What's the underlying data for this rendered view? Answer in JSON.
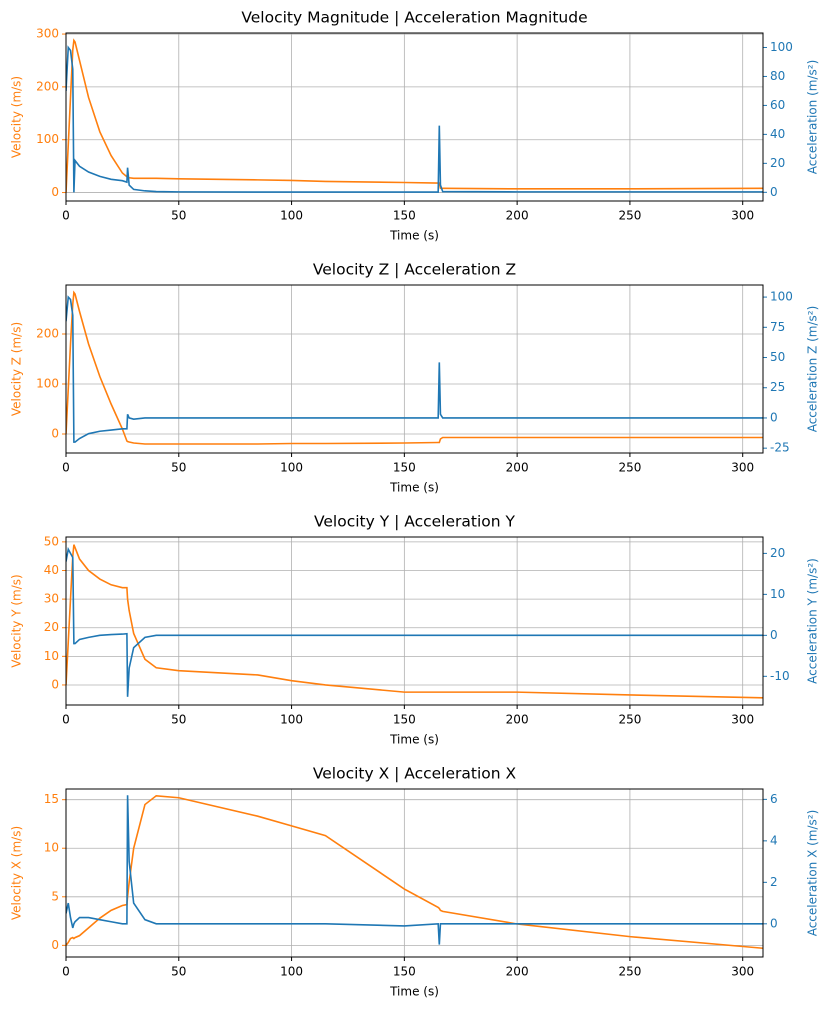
{
  "chart_data": [
    {
      "type": "line",
      "title": "Velocity Magnitude | Acceleration Magnitude",
      "xlabel": "Time (s)",
      "ylabel": "Velocity (m/s)",
      "y2label": "Acceleration (m/s²)",
      "x": [
        0,
        1,
        2,
        3,
        3.5,
        4,
        6,
        10,
        15,
        20,
        25,
        27,
        27.3,
        28,
        30,
        35,
        40,
        50,
        85,
        100,
        115,
        150,
        165,
        165.5,
        166,
        167,
        200,
        250,
        309
      ],
      "series": [
        {
          "name": "Velocity",
          "color": "#ff7f0e",
          "axis": "y",
          "values": [
            0,
            90,
            180,
            270,
            288,
            285,
            250,
            180,
            115,
            70,
            37,
            30,
            30,
            28,
            27,
            27,
            27,
            26,
            24,
            23,
            21,
            19,
            18,
            18,
            8,
            8,
            7,
            7,
            8
          ]
        },
        {
          "name": "Acceleration",
          "color": "#1f77b4",
          "axis": "y2",
          "values": [
            70,
            100,
            98,
            85,
            0,
            22,
            18,
            14,
            11,
            9,
            8,
            7,
            17,
            5,
            2,
            1,
            0.5,
            0.3,
            0.2,
            0.2,
            0.2,
            0.2,
            0.2,
            46,
            5,
            0.5,
            0.3,
            0.3,
            0.3
          ]
        }
      ],
      "xlim": [
        0,
        309
      ],
      "xticks": [
        0,
        50,
        100,
        150,
        200,
        250,
        300
      ],
      "ylim": [
        -16,
        302
      ],
      "yticks": [
        0,
        100,
        200,
        300
      ],
      "y2lim": [
        -6,
        110
      ],
      "y2ticks": [
        0,
        20,
        40,
        60,
        80,
        100
      ],
      "grid": true
    },
    {
      "type": "line",
      "title": "Velocity Z | Acceleration Z",
      "xlabel": "Time (s)",
      "ylabel": "Velocity Z (m/s)",
      "y2label": "Acceleration Z (m/s²)",
      "x": [
        0,
        1,
        2,
        3,
        3.5,
        4,
        6,
        10,
        15,
        20,
        25,
        27,
        27.3,
        28,
        30,
        35,
        40,
        50,
        85,
        100,
        115,
        150,
        165,
        165.5,
        166,
        167,
        200,
        250,
        309
      ],
      "series": [
        {
          "name": "Velocity Z",
          "color": "#ff7f0e",
          "axis": "y",
          "values": [
            0,
            90,
            180,
            260,
            283,
            280,
            245,
            180,
            115,
            60,
            10,
            -14,
            -15,
            -16,
            -18,
            -20,
            -20,
            -20,
            -20,
            -19,
            -19,
            -18,
            -17,
            -17,
            -10,
            -7,
            -7,
            -7,
            -7
          ]
        },
        {
          "name": "Acceleration Z",
          "color": "#1f77b4",
          "axis": "y2",
          "values": [
            80,
            100,
            98,
            85,
            -20,
            -20,
            -17,
            -13,
            -11,
            -10,
            -9,
            -9,
            3,
            0,
            -1,
            0,
            0,
            0,
            0,
            0,
            0,
            0,
            0,
            46,
            3,
            0,
            0,
            0,
            0
          ]
        }
      ],
      "xlim": [
        0,
        309
      ],
      "xticks": [
        0,
        50,
        100,
        150,
        200,
        250,
        300
      ],
      "ylim": [
        -38,
        298
      ],
      "yticks": [
        0,
        100,
        200
      ],
      "y2lim": [
        -29,
        110
      ],
      "y2ticks": [
        -25,
        0,
        25,
        50,
        75,
        100
      ],
      "grid": true
    },
    {
      "type": "line",
      "title": "Velocity Y | Acceleration Y",
      "xlabel": "Time (s)",
      "ylabel": "Velocity Y (m/s)",
      "y2label": "Acceleration Y (m/s²)",
      "x": [
        0,
        1,
        2,
        3,
        3.5,
        4,
        6,
        10,
        15,
        20,
        25,
        27,
        27.3,
        28,
        30,
        35,
        40,
        50,
        85,
        100,
        115,
        150,
        165,
        165.5,
        166,
        167,
        200,
        250,
        309
      ],
      "series": [
        {
          "name": "Velocity Y",
          "color": "#ff7f0e",
          "axis": "y",
          "values": [
            0,
            15,
            30,
            45,
            49,
            48,
            44,
            40,
            37,
            35,
            34,
            34,
            30,
            26,
            18,
            9,
            6,
            5,
            3.5,
            1.5,
            0,
            -2.5,
            -2.5,
            -2.5,
            -2.5,
            -2.5,
            -2.5,
            -3.5,
            -4.5
          ]
        },
        {
          "name": "Acceleration Y",
          "color": "#1f77b4",
          "axis": "y2",
          "values": [
            18,
            21,
            20,
            19,
            -2,
            -2,
            -1,
            -0.5,
            0,
            0.2,
            0.3,
            0.4,
            -15,
            -8,
            -3,
            -0.5,
            0,
            0,
            0,
            0,
            0,
            0,
            0,
            0,
            0,
            0,
            0,
            0,
            0
          ]
        }
      ],
      "xlim": [
        0,
        309
      ],
      "xticks": [
        0,
        50,
        100,
        150,
        200,
        250,
        300
      ],
      "ylim": [
        -7,
        51.7
      ],
      "yticks": [
        0,
        10,
        20,
        30,
        40,
        50
      ],
      "y2lim": [
        -17,
        24
      ],
      "y2ticks": [
        -10,
        0,
        10,
        20
      ],
      "grid": true
    },
    {
      "type": "line",
      "title": "Velocity X | Acceleration X",
      "xlabel": "Time (s)",
      "ylabel": "Velocity X (m/s)",
      "y2label": "Acceleration X (m/s²)",
      "x": [
        0,
        1,
        2,
        3,
        3.5,
        4,
        6,
        10,
        15,
        20,
        25,
        27,
        27.3,
        28,
        30,
        35,
        40,
        50,
        85,
        100,
        115,
        150,
        165,
        165.5,
        166,
        167,
        200,
        250,
        309
      ],
      "series": [
        {
          "name": "Velocity X",
          "color": "#ff7f0e",
          "axis": "y",
          "values": [
            0,
            0.3,
            0.7,
            0.8,
            0.7,
            0.8,
            1.0,
            1.8,
            2.8,
            3.6,
            4.1,
            4.2,
            5,
            6.5,
            10,
            14.5,
            15.4,
            15.2,
            13.3,
            12.3,
            11.3,
            5.8,
            3.9,
            3.8,
            3.6,
            3.5,
            2.2,
            0.9,
            -0.3
          ]
        },
        {
          "name": "Acceleration X",
          "color": "#1f77b4",
          "axis": "y2",
          "values": [
            0.5,
            1,
            0.3,
            -0.2,
            0,
            0.1,
            0.3,
            0.3,
            0.2,
            0.1,
            0,
            0,
            6.2,
            3,
            1,
            0.2,
            0,
            0,
            0,
            0,
            0,
            -0.1,
            0,
            -1,
            0,
            0,
            0,
            0,
            0
          ]
        }
      ],
      "xlim": [
        0,
        309
      ],
      "xticks": [
        0,
        50,
        100,
        150,
        200,
        250,
        300
      ],
      "ylim": [
        -1.2,
        16.1
      ],
      "yticks": [
        0,
        5,
        10,
        15
      ],
      "y2lim": [
        -1.6,
        6.5
      ],
      "y2ticks": [
        0,
        2,
        4,
        6
      ],
      "grid": true
    }
  ]
}
